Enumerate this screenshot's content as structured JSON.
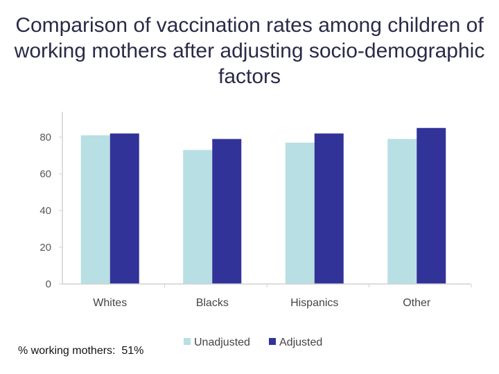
{
  "title": "Comparison of vaccination rates among children of working mothers after adjusting socio-demographic factors",
  "note": "% working mothers:  51%",
  "colors": {
    "unadjusted": "#b8dfe3",
    "adjusted": "#323399",
    "axis": "#d0d0d0"
  },
  "chart_data": {
    "type": "bar",
    "title": "Comparison of vaccination rates among children of working mothers after adjusting socio-demographic factors",
    "xlabel": "",
    "ylabel": "",
    "categories": [
      "Whites",
      "Blacks",
      "Hispanics",
      "Other"
    ],
    "series": [
      {
        "name": "Unadjusted",
        "values": [
          81,
          73,
          77,
          79
        ]
      },
      {
        "name": "Adjusted",
        "values": [
          82,
          79,
          82,
          85
        ]
      }
    ],
    "ylim": [
      0,
      90
    ],
    "yticks": [
      0,
      20,
      40,
      60,
      80
    ],
    "grid": false,
    "legend": "bottom"
  }
}
